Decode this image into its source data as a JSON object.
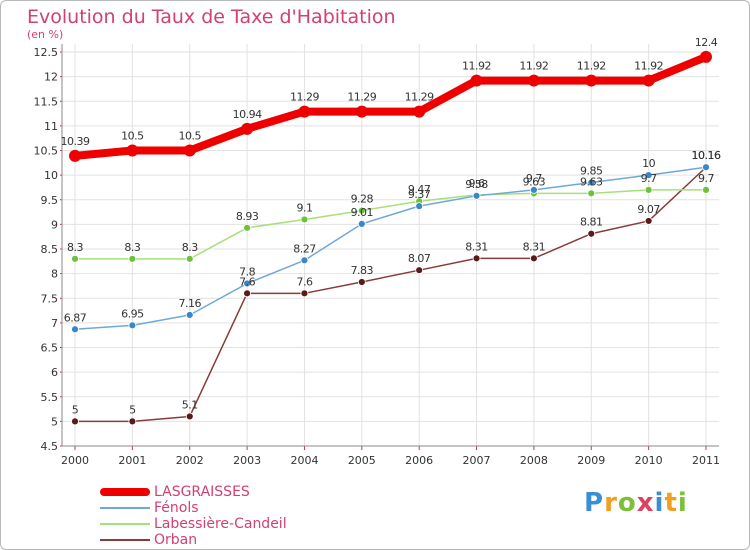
{
  "title": "Evolution du Taux de Taxe d'Habitation",
  "unit": "(en %)",
  "logo": {
    "letters": [
      "P",
      "r",
      "o",
      "x",
      "i",
      "t",
      "i"
    ],
    "colors": [
      "#3b8fd0",
      "#f0a020",
      "#7cc03a",
      "#e04060",
      "#3b8fd0",
      "#f0a020",
      "#7cc03a"
    ]
  },
  "chart_data": {
    "type": "line",
    "x": [
      "2000",
      "2001",
      "2002",
      "2003",
      "2004",
      "2005",
      "2006",
      "2007",
      "2008",
      "2009",
      "2010",
      "2011"
    ],
    "ylim": [
      4.5,
      12.5
    ],
    "yticks": [
      "4.5",
      "5",
      "5.5",
      "6",
      "6.5",
      "7",
      "7.5",
      "8",
      "8.5",
      "9",
      "9.5",
      "10",
      "10.5",
      "11",
      "11.5",
      "12",
      "12.5"
    ],
    "grid": true,
    "legend_position": "bottom-left",
    "series": [
      {
        "name": "LASGRAISSES",
        "color": "#ee0000",
        "values": [
          10.39,
          10.5,
          10.5,
          10.94,
          11.29,
          11.29,
          11.29,
          11.92,
          11.92,
          11.92,
          11.92,
          12.4
        ],
        "labels": [
          "10.39",
          "10.5",
          "10.5",
          "10.94",
          "11.29",
          "11.29",
          "11.29",
          "11.92",
          "11.92",
          "11.92",
          "11.92",
          "12.4"
        ]
      },
      {
        "name": "Fénols",
        "color": "#6fa8d8",
        "values": [
          6.87,
          6.95,
          7.16,
          7.8,
          8.27,
          9.01,
          9.37,
          9.58,
          9.7,
          9.85,
          10,
          10.16
        ],
        "labels": [
          "6.87",
          "6.95",
          "7.16",
          "7.8",
          "8.27",
          "9.01",
          "9.37",
          "9.58",
          "9.7",
          "9.85",
          "10",
          "10.16"
        ]
      },
      {
        "name": "Labessière-Candeil",
        "color": "#a6e07a",
        "values": [
          8.3,
          8.3,
          8.3,
          8.93,
          9.1,
          9.28,
          9.47,
          9.6,
          9.63,
          9.63,
          9.7,
          9.7
        ],
        "labels": [
          "8.3",
          "8.3",
          "8.3",
          "8.93",
          "9.1",
          "9.28",
          "9.47",
          "9.6",
          "9.63",
          "9.63",
          "9.7",
          "9.7"
        ]
      },
      {
        "name": "Orban",
        "color": "#8a3a3a",
        "values": [
          5,
          5,
          5.1,
          7.6,
          7.6,
          7.83,
          8.07,
          8.31,
          8.31,
          8.81,
          9.07,
          10.16
        ],
        "labels": [
          "5",
          "5",
          "5.1",
          "7.6",
          "7.6",
          "7.83",
          "8.07",
          "8.31",
          "8.31",
          "8.81",
          "9.07",
          "10.16"
        ]
      }
    ]
  }
}
